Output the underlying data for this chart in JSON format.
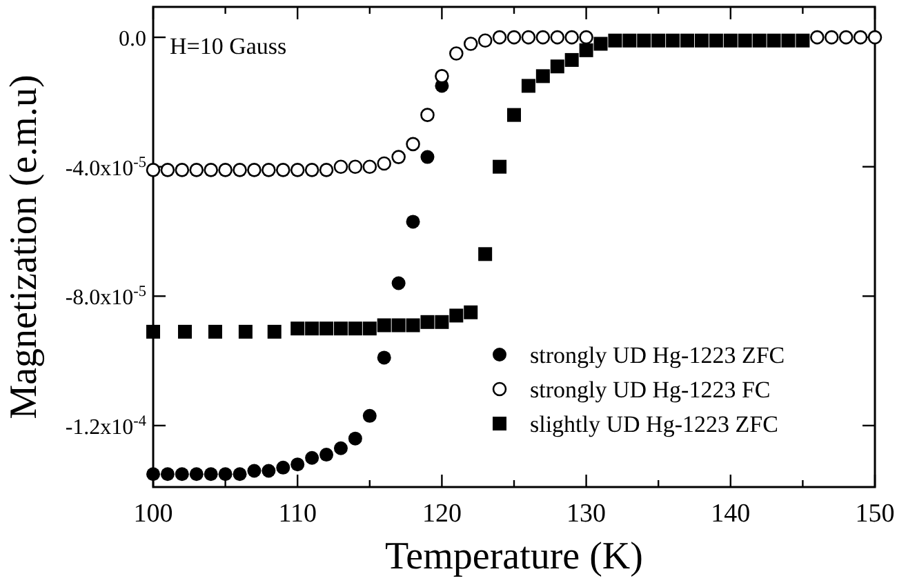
{
  "chart_data": {
    "type": "scatter",
    "xlabel": "Temperature (K)",
    "ylabel": "Magnetization (e.m.u)",
    "annotations": [
      "H=10 Gauss"
    ],
    "xlim": [
      100,
      150
    ],
    "xticks": [
      100,
      {
        "value": 105,
        "label": null
      },
      110,
      {
        "value": 115,
        "label": null
      },
      120,
      {
        "value": 125,
        "label": null
      },
      130,
      {
        "value": 135,
        "label": null
      },
      140,
      {
        "value": 145,
        "label": null
      },
      150
    ],
    "ylim": [
      -0.000139,
      9.4e-06
    ],
    "yticks": [
      {
        "value": 0,
        "label": "0.0"
      },
      {
        "value": -4e-05,
        "label": "-4.0x10$^{-5}$"
      },
      {
        "value": -8e-05,
        "label": "-8.0x10$^{-5}$"
      },
      {
        "value": -0.00012,
        "label": "-1.2x10$^{-4}$"
      }
    ],
    "legend": "bottom right",
    "grid": false,
    "series": [
      {
        "name": "strongly UD Hg-1223 ZFC",
        "color": "#000000",
        "marker": "circle",
        "x": [
          100,
          101,
          102,
          103,
          104,
          105,
          106,
          107,
          108,
          109,
          110,
          111,
          112,
          113,
          114,
          115,
          116,
          117,
          118,
          119,
          120
        ],
        "values": [
          -0.000135,
          -0.000135,
          -0.000135,
          -0.000135,
          -0.000135,
          -0.000135,
          -0.000135,
          -0.000134,
          -0.000134,
          -0.000133,
          -0.000132,
          -0.00013,
          -0.000129,
          -0.000127,
          -0.000124,
          -0.000117,
          -9.9e-05,
          -7.6e-05,
          -5.7e-05,
          -3.7e-05,
          -1.5e-05
        ]
      },
      {
        "name": "strongly UD Hg-1223 FC",
        "color": "#ffffff",
        "marker": "circle",
        "x": [
          100,
          101,
          102,
          103,
          104,
          105,
          106,
          107,
          108,
          109,
          110,
          111,
          112,
          113,
          114,
          115,
          116,
          117,
          118,
          119,
          120,
          121,
          122,
          123,
          124,
          125,
          126,
          127,
          128,
          129,
          130,
          146,
          147,
          148,
          149,
          150
        ],
        "values": [
          -4.1e-05,
          -4.1e-05,
          -4.1e-05,
          -4.1e-05,
          -4.1e-05,
          -4.1e-05,
          -4.1e-05,
          -4.1e-05,
          -4.1e-05,
          -4.1e-05,
          -4.1e-05,
          -4.1e-05,
          -4.1e-05,
          -4e-05,
          -4e-05,
          -4e-05,
          -3.9e-05,
          -3.7e-05,
          -3.3e-05,
          -2.4e-05,
          -1.2e-05,
          -5e-06,
          -2e-06,
          -1e-06,
          0,
          0,
          0,
          0,
          0,
          0,
          0,
          0,
          0,
          0,
          0,
          0
        ]
      },
      {
        "name": "slightly UD Hg-1223 ZFC",
        "color": "#000000",
        "marker": "square",
        "x": [
          100,
          102.2,
          104.3,
          106.4,
          108.4,
          110,
          111,
          112,
          113,
          114,
          115,
          116,
          117,
          118,
          119,
          120,
          121,
          122,
          123,
          124,
          125,
          126,
          127,
          128,
          129,
          130,
          131,
          132,
          133,
          134,
          135,
          136,
          137,
          138,
          139,
          140,
          141,
          142,
          143,
          144,
          145
        ],
        "values": [
          -9.1e-05,
          -9.1e-05,
          -9.1e-05,
          -9.1e-05,
          -9.1e-05,
          -9e-05,
          -9e-05,
          -9e-05,
          -9e-05,
          -9e-05,
          -9e-05,
          -8.9e-05,
          -8.9e-05,
          -8.9e-05,
          -8.8e-05,
          -8.8e-05,
          -8.6e-05,
          -8.5e-05,
          -6.7e-05,
          -4e-05,
          -2.4e-05,
          -1.5e-05,
          -1.2e-05,
          -9e-06,
          -7e-06,
          -4e-06,
          -2e-06,
          -1e-06,
          -1e-06,
          -1e-06,
          -1e-06,
          -1e-06,
          -1e-06,
          -1e-06,
          -1e-06,
          -1e-06,
          -1e-06,
          -1e-06,
          -1e-06,
          -1e-06,
          -1e-06
        ]
      }
    ]
  }
}
